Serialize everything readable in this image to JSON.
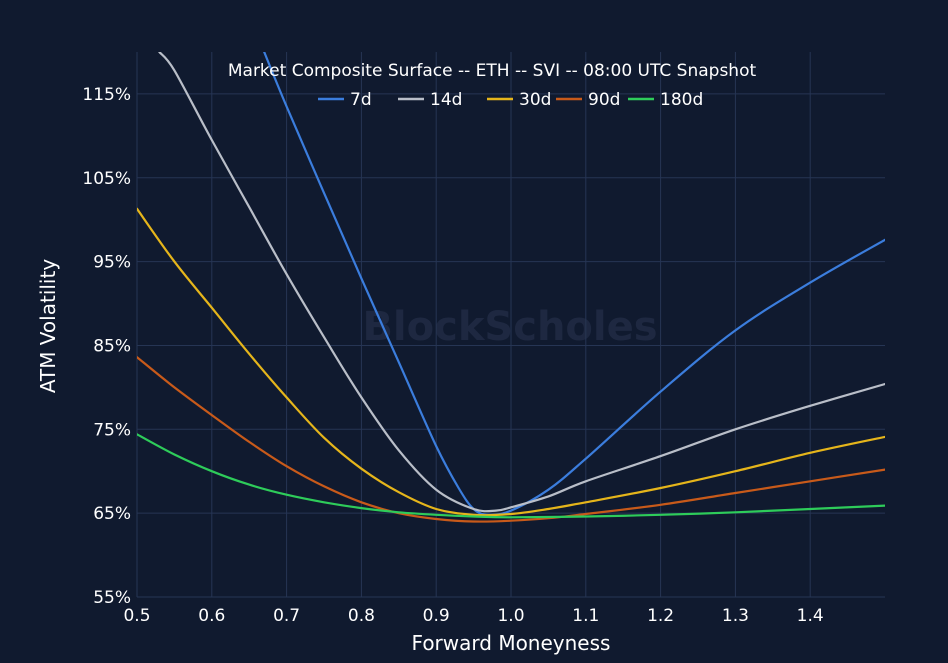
{
  "chart_data": {
    "type": "line",
    "title": "Market Composite Surface -- ETH -- SVI -- 08:00 UTC Snapshot",
    "xlabel": "Forward Moneyness",
    "ylabel": "ATM Volatility",
    "xlim": [
      0.5,
      1.5
    ],
    "ylim": [
      55,
      120
    ],
    "x_ticks": [
      0.5,
      0.6,
      0.7,
      0.8,
      0.9,
      1.0,
      1.1,
      1.2,
      1.3,
      1.4
    ],
    "x_tick_labels": [
      "0.5",
      "0.6",
      "0.7",
      "0.8",
      "0.9",
      "1.0",
      "1.1",
      "1.2",
      "1.3",
      "1.4"
    ],
    "y_ticks": [
      55,
      65,
      75,
      85,
      95,
      105,
      115
    ],
    "y_tick_labels": [
      "55%",
      "65%",
      "75%",
      "85%",
      "95%",
      "105%",
      "115%"
    ],
    "grid": true,
    "legend_position": "top-center",
    "watermark": "BlockScholes",
    "series": [
      {
        "name": "7d",
        "color": "#3b7ddd",
        "x": [
          0.67,
          0.7,
          0.75,
          0.8,
          0.85,
          0.9,
          0.93,
          0.95,
          0.97,
          1.0,
          1.05,
          1.1,
          1.2,
          1.3,
          1.4,
          1.5
        ],
        "y": [
          120,
          113.5,
          103.2,
          93.0,
          83.0,
          73.0,
          68.0,
          65.5,
          64.8,
          65.3,
          67.8,
          71.5,
          79.5,
          86.8,
          92.5,
          97.6
        ]
      },
      {
        "name": "14d",
        "color": "#b9bec8",
        "x": [
          0.53,
          0.55,
          0.6,
          0.65,
          0.7,
          0.75,
          0.8,
          0.85,
          0.9,
          0.95,
          0.98,
          1.0,
          1.05,
          1.1,
          1.2,
          1.3,
          1.4,
          1.5
        ],
        "y": [
          120,
          117.8,
          109.5,
          101.5,
          93.5,
          86.0,
          78.8,
          72.5,
          67.8,
          65.5,
          65.3,
          65.7,
          67.0,
          68.8,
          71.8,
          75.0,
          77.8,
          80.4
        ]
      },
      {
        "name": "30d",
        "color": "#e5b51b",
        "x": [
          0.5,
          0.55,
          0.6,
          0.65,
          0.7,
          0.75,
          0.8,
          0.85,
          0.9,
          0.95,
          1.0,
          1.05,
          1.1,
          1.2,
          1.3,
          1.4,
          1.5
        ],
        "y": [
          101.3,
          95.0,
          89.5,
          84.0,
          78.8,
          74.0,
          70.3,
          67.5,
          65.5,
          64.8,
          64.9,
          65.5,
          66.3,
          68.0,
          70.0,
          72.2,
          74.1
        ]
      },
      {
        "name": "90d",
        "color": "#c85a1a",
        "x": [
          0.5,
          0.55,
          0.6,
          0.65,
          0.7,
          0.75,
          0.8,
          0.85,
          0.9,
          0.95,
          1.0,
          1.05,
          1.1,
          1.2,
          1.3,
          1.4,
          1.5
        ],
        "y": [
          83.6,
          80.0,
          76.7,
          73.5,
          70.6,
          68.2,
          66.3,
          65.0,
          64.3,
          64.0,
          64.1,
          64.4,
          64.9,
          66.0,
          67.4,
          68.8,
          70.2
        ]
      },
      {
        "name": "180d",
        "color": "#2ecc5a",
        "x": [
          0.5,
          0.55,
          0.6,
          0.65,
          0.7,
          0.75,
          0.8,
          0.85,
          0.9,
          0.95,
          1.0,
          1.1,
          1.2,
          1.3,
          1.4,
          1.5
        ],
        "y": [
          74.4,
          72.0,
          70.0,
          68.4,
          67.2,
          66.3,
          65.6,
          65.1,
          64.8,
          64.6,
          64.5,
          64.6,
          64.8,
          65.1,
          65.5,
          65.9
        ]
      }
    ]
  }
}
